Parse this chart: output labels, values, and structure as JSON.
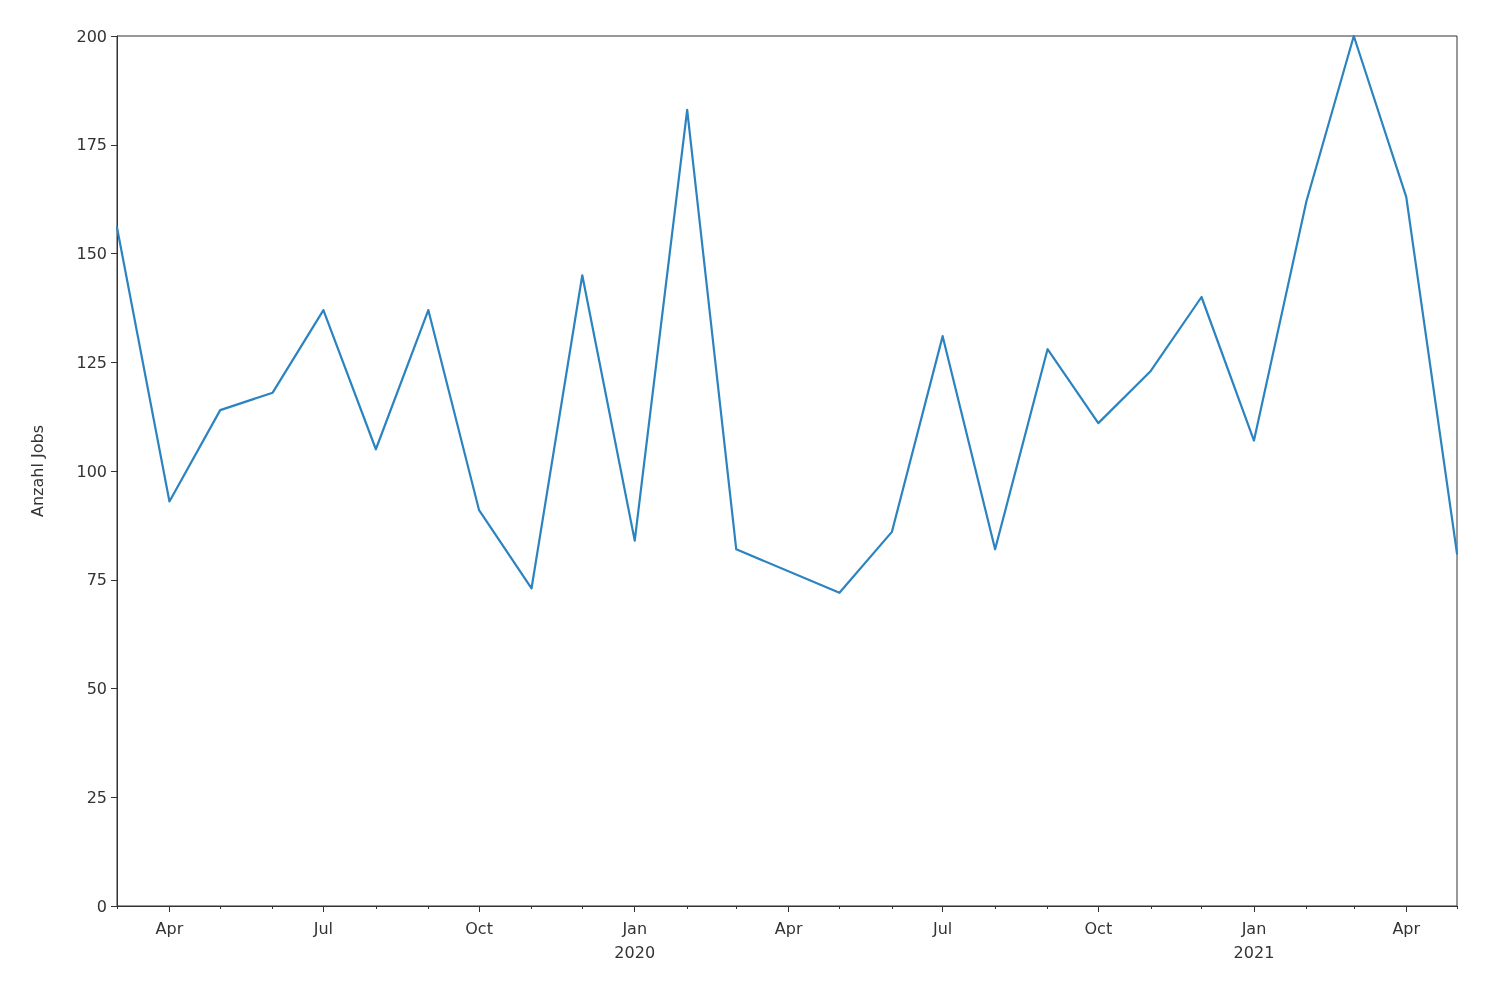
{
  "chart_data": {
    "type": "line",
    "ylabel": "Anzahl Jobs",
    "x": [
      "2019-03",
      "2019-04",
      "2019-05",
      "2019-06",
      "2019-07",
      "2019-08",
      "2019-09",
      "2019-10",
      "2019-11",
      "2019-12",
      "2020-01",
      "2020-02",
      "2020-03",
      "2020-05",
      "2020-06",
      "2020-07",
      "2020-08",
      "2020-09",
      "2020-10",
      "2020-11",
      "2020-12",
      "2021-01",
      "2021-02",
      "2021-03",
      "2021-04",
      "2021-05"
    ],
    "series": [
      {
        "color": "#2b83c0",
        "values": [
          156,
          93,
          114,
          118,
          137,
          105,
          137,
          91,
          73,
          145,
          84,
          183,
          82,
          72,
          86,
          131,
          82,
          128,
          111,
          123,
          140,
          107,
          162,
          200,
          163,
          81
        ]
      }
    ],
    "xlim": [
      "2019-03",
      "2021-05"
    ],
    "xticks": [
      {
        "value": "2019-03",
        "label": null
      },
      {
        "value": "2019-04",
        "label": "Apr"
      },
      {
        "value": "2019-05",
        "label": null
      },
      {
        "value": "2019-06",
        "label": null
      },
      {
        "value": "2019-07",
        "label": "Jul"
      },
      {
        "value": "2019-08",
        "label": null
      },
      {
        "value": "2019-09",
        "label": null
      },
      {
        "value": "2019-10",
        "label": "Oct"
      },
      {
        "value": "2019-11",
        "label": null
      },
      {
        "value": "2019-12",
        "label": null
      },
      {
        "value": "2020-01",
        "label": "Jan\n2020"
      },
      {
        "value": "2020-02",
        "label": null
      },
      {
        "value": "2020-03",
        "label": null
      },
      {
        "value": "2020-04",
        "label": "Apr"
      },
      {
        "value": "2020-05",
        "label": null
      },
      {
        "value": "2020-06",
        "label": null
      },
      {
        "value": "2020-07",
        "label": "Jul"
      },
      {
        "value": "2020-08",
        "label": null
      },
      {
        "value": "2020-09",
        "label": null
      },
      {
        "value": "2020-10",
        "label": "Oct"
      },
      {
        "value": "2020-11",
        "label": null
      },
      {
        "value": "2020-12",
        "label": null
      },
      {
        "value": "2021-01",
        "label": "Jan\n2021"
      },
      {
        "value": "2021-02",
        "label": null
      },
      {
        "value": "2021-03",
        "label": null
      },
      {
        "value": "2021-04",
        "label": "Apr"
      },
      {
        "value": "2021-05",
        "label": null
      }
    ],
    "ylim": [
      0,
      200
    ],
    "yticks": [
      0,
      25,
      50,
      75,
      100,
      125,
      150,
      175,
      200
    ],
    "grid": false,
    "marker": "none",
    "line_style": "solid"
  }
}
